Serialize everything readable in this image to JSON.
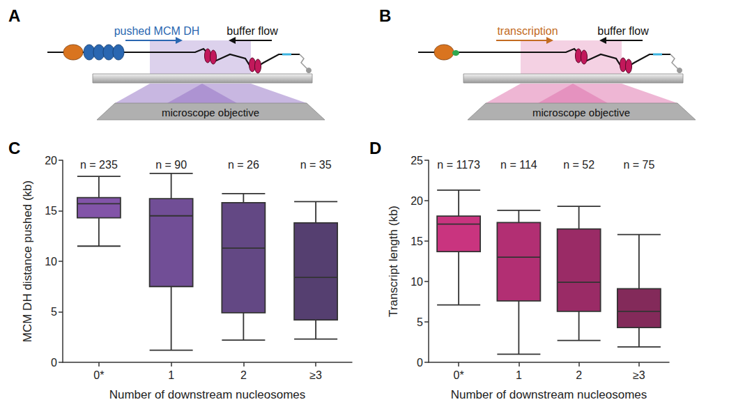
{
  "chart_data": [
    {
      "type": "boxplot",
      "panel": "C",
      "categories": [
        "0*",
        "1",
        "2",
        "≥3"
      ],
      "values": [
        [
          11.5,
          14.3,
          15.7,
          16.3,
          18.4
        ],
        [
          1.2,
          7.5,
          14.5,
          16.2,
          18.7
        ],
        [
          2.2,
          4.9,
          11.3,
          15.8,
          16.7
        ],
        [
          2.3,
          4.2,
          8.4,
          13.8,
          15.9
        ]
      ],
      "annotations": [
        "n = 235",
        "n = 90",
        "n = 26",
        "n = 35"
      ],
      "colors": [
        "#8254a8",
        "#714e96",
        "#634884",
        "#553f70"
      ],
      "x_label": "Number of downstream nucleosomes",
      "y_label": "MCM DH distance pushed (kb)",
      "ylim": [
        0,
        20
      ],
      "yticks": [
        0,
        5,
        10,
        15,
        20
      ],
      "grid": false
    },
    {
      "type": "boxplot",
      "panel": "D",
      "categories": [
        "0*",
        "1",
        "2",
        "≥3"
      ],
      "values": [
        [
          7.1,
          13.7,
          17.1,
          18.1,
          21.3
        ],
        [
          1.0,
          7.6,
          13.0,
          17.3,
          18.8
        ],
        [
          2.7,
          6.3,
          9.9,
          16.5,
          19.3
        ],
        [
          1.9,
          4.3,
          6.3,
          9.1,
          15.8
        ]
      ],
      "annotations": [
        "n = 1173",
        "n = 114",
        "n = 52",
        "n = 75"
      ],
      "colors": [
        "#c9347f",
        "#b22f73",
        "#9a2b66",
        "#832a5a"
      ],
      "x_label": "Number of downstream nucleosomes",
      "y_label": "Transcript length (kb)",
      "ylim": [
        0,
        25
      ],
      "yticks": [
        0,
        5,
        10,
        15,
        20,
        25
      ],
      "grid": false
    }
  ],
  "diagrams": [
    {
      "panel": "A",
      "motion": "pushed MCM DH",
      "flow": "buffer flow",
      "objective": "microscope objective",
      "color": "#9b7cc8"
    },
    {
      "panel": "B",
      "motion": "transcription",
      "flow": "buffer flow",
      "objective": "microscope objective",
      "color": "#e07ab0"
    }
  ]
}
